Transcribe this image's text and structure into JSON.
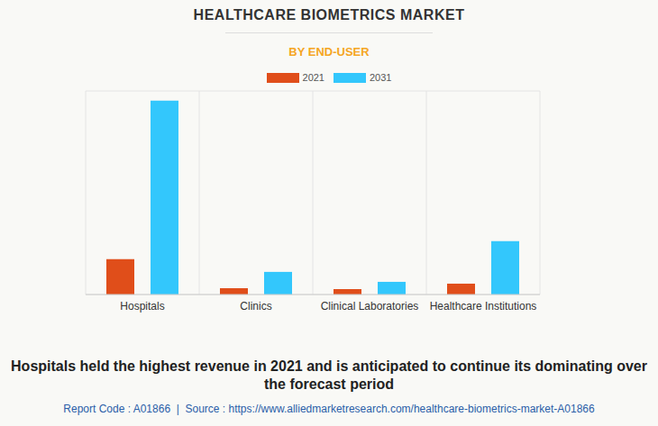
{
  "chart_data": {
    "type": "bar",
    "title": "HEALTHCARE BIOMETRICS MARKET",
    "subtitle": "BY END-USER",
    "categories": [
      "Hospitals",
      "Clinics",
      "Clinical Laboratories",
      "Healthcare Institutions"
    ],
    "series": [
      {
        "name": "2021",
        "color": "#e04e1a",
        "values": [
          1.56,
          0.28,
          0.24,
          0.48
        ]
      },
      {
        "name": "2031",
        "color": "#33c7fc",
        "values": [
          8.57,
          1.0,
          0.56,
          2.36
        ]
      }
    ],
    "ylim": [
      0,
      9
    ],
    "yticks": [
      0,
      1,
      2,
      3,
      4,
      5,
      6,
      7,
      8,
      9
    ],
    "grid": true,
    "tick_labels": "x",
    "legend": "top",
    "annotations": [
      "Hospitals held the highest revenue in 2021 and is anticipated to continue its dominating over the forecast period",
      "Report Code : A01866  |  Source : https://www.alliedmarketresearch.com/healthcare-biometrics-market-A01866"
    ]
  }
}
